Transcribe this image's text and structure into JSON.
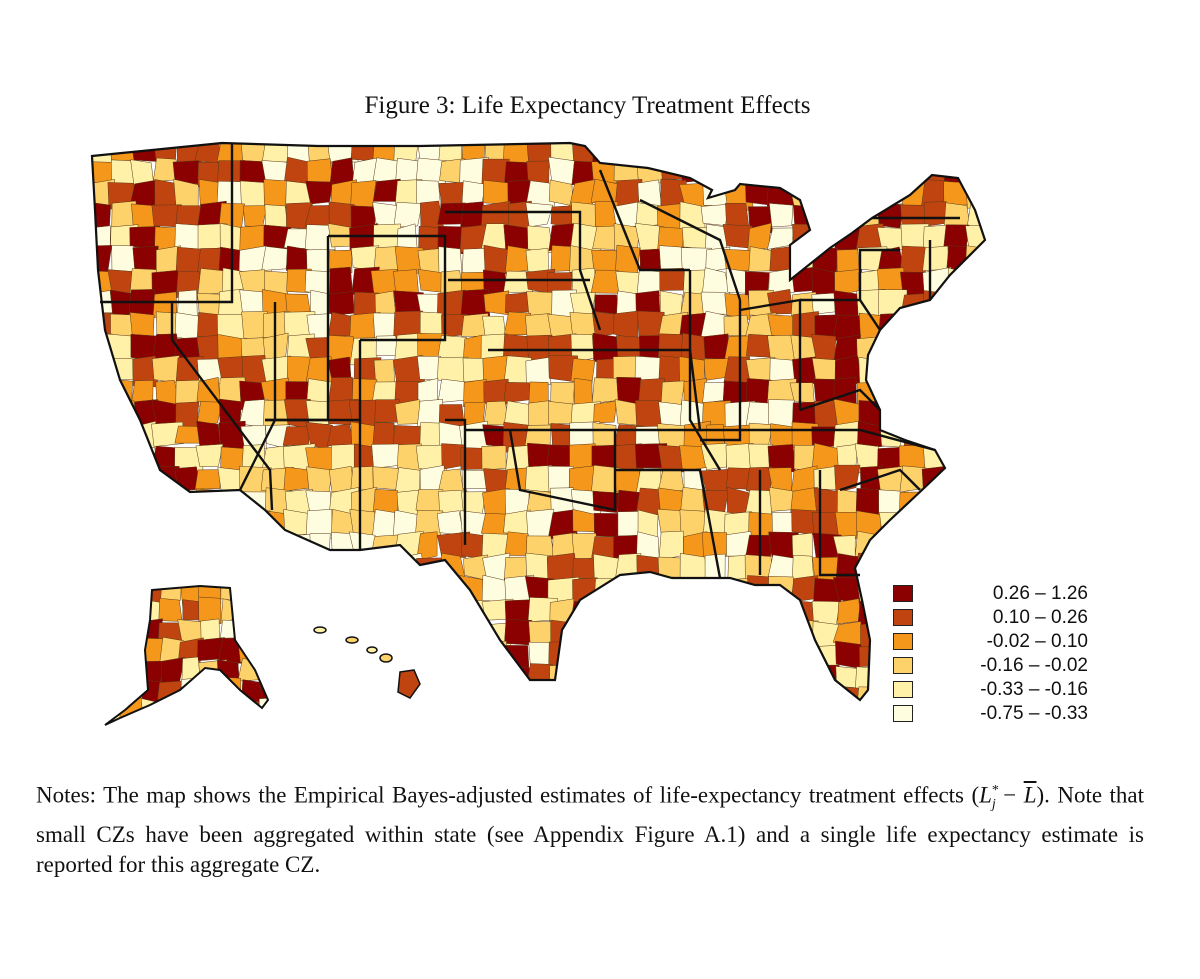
{
  "figure": {
    "title": "Figure 3: Life Expectancy Treatment Effects"
  },
  "legend": {
    "items": [
      {
        "label": "0.26 – 1.26",
        "color": "#8b0000"
      },
      {
        "label": "0.10 – 0.26",
        "color": "#c0440f"
      },
      {
        "label": "-0.02 – 0.10",
        "color": "#f5971b"
      },
      {
        "label": "-0.16 – -0.02",
        "color": "#fdd26a"
      },
      {
        "label": "-0.33 – -0.16",
        "color": "#fff1a8"
      },
      {
        "label": "-0.75 – -0.33",
        "color": "#fffde0"
      }
    ]
  },
  "notes": {
    "part1": "Notes: The map shows the Empirical Bayes-adjusted estimates of life-expectancy treatment effects (",
    "math_L": "L",
    "math_sub": "j",
    "math_sup": "*",
    "math_minus": " − ",
    "math_Lbar": "L",
    "part2": "). Note that small CZs have been aggregated within state (see Appendix Figure A.1) and a single life expectancy estimate is reported for this aggregate CZ."
  }
}
